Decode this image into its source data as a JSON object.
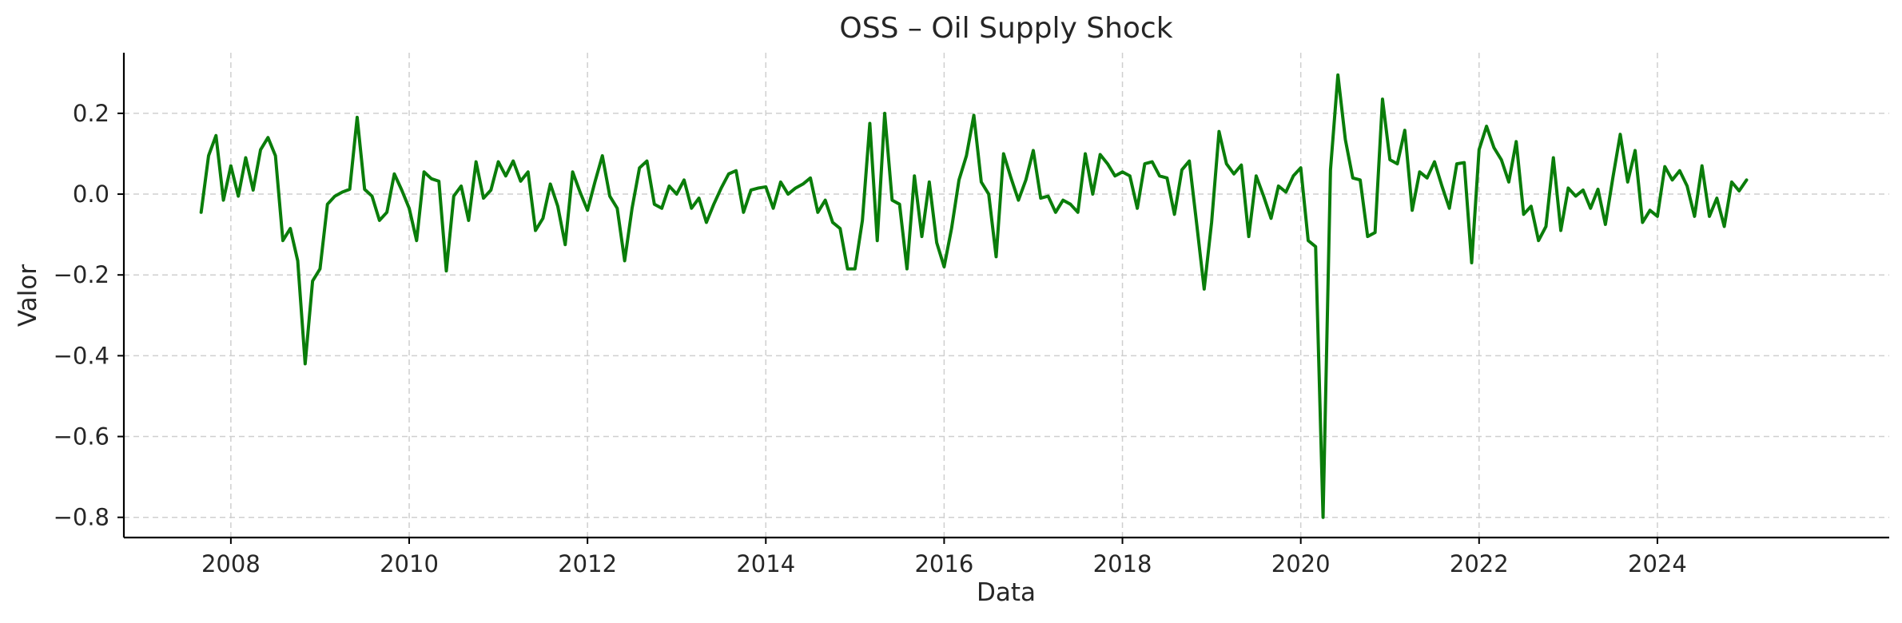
{
  "chart_data": {
    "type": "line",
    "title": "OSS – Oil Supply Shock",
    "xlabel": "Data",
    "ylabel": "Valor",
    "grid": true,
    "xlim": [
      2006.8,
      2026.6
    ],
    "ylim": [
      -0.85,
      0.35
    ],
    "x_ticks": [
      2008,
      2010,
      2012,
      2014,
      2016,
      2018,
      2020,
      2022,
      2024
    ],
    "x_tick_labels": [
      "2008",
      "2010",
      "2012",
      "2014",
      "2016",
      "2018",
      "2020",
      "2022",
      "2024"
    ],
    "y_ticks": [
      0.2,
      0.0,
      -0.2,
      -0.4,
      -0.6,
      -0.8
    ],
    "y_tick_labels": [
      "0.2",
      "0.0",
      "−0.2",
      "−0.4",
      "−0.6",
      "−0.8"
    ],
    "colors": {
      "series": "#0a7d0a"
    },
    "series": [
      {
        "x_start": "2007-09",
        "frequency": "monthly",
        "values": [
          -0.045,
          0.095,
          0.145,
          -0.015,
          0.07,
          -0.005,
          0.09,
          0.01,
          0.11,
          0.14,
          0.095,
          -0.115,
          -0.085,
          -0.165,
          -0.42,
          -0.215,
          -0.185,
          -0.025,
          -0.005,
          0.005,
          0.012,
          0.19,
          0.012,
          -0.005,
          -0.065,
          -0.045,
          0.05,
          0.01,
          -0.035,
          -0.115,
          0.055,
          0.038,
          0.032,
          -0.19,
          -0.005,
          0.02,
          -0.065,
          0.08,
          -0.01,
          0.01,
          0.08,
          0.045,
          0.082,
          0.032,
          0.055,
          -0.09,
          -0.06,
          0.025,
          -0.03,
          -0.125,
          0.055,
          0.005,
          -0.04,
          0.03,
          0.095,
          -0.005,
          -0.035,
          -0.165,
          -0.035,
          0.065,
          0.082,
          -0.025,
          -0.035,
          0.02,
          0.0,
          0.035,
          -0.035,
          -0.01,
          -0.07,
          -0.025,
          0.015,
          0.05,
          0.058,
          -0.045,
          0.01,
          0.015,
          0.018,
          -0.035,
          0.03,
          0.0,
          0.015,
          0.025,
          0.04,
          -0.045,
          -0.015,
          -0.07,
          -0.085,
          -0.185,
          -0.185,
          -0.065,
          0.175,
          -0.115,
          0.2,
          -0.015,
          -0.025,
          -0.185,
          0.045,
          -0.105,
          0.03,
          -0.12,
          -0.18,
          -0.085,
          0.035,
          0.095,
          0.195,
          0.03,
          0.0,
          -0.155,
          0.1,
          0.04,
          -0.015,
          0.035,
          0.108,
          -0.01,
          -0.005,
          -0.045,
          -0.015,
          -0.025,
          -0.045,
          0.1,
          0.0,
          0.098,
          0.075,
          0.045,
          0.055,
          0.045,
          -0.035,
          0.075,
          0.08,
          0.045,
          0.04,
          -0.05,
          0.06,
          0.082,
          -0.075,
          -0.235,
          -0.07,
          0.155,
          0.075,
          0.05,
          0.072,
          -0.105,
          0.045,
          -0.005,
          -0.06,
          0.02,
          0.005,
          0.045,
          0.065,
          -0.115,
          -0.13,
          -0.8,
          0.06,
          0.295,
          0.135,
          0.04,
          0.035,
          -0.105,
          -0.095,
          0.235,
          0.085,
          0.075,
          0.158,
          -0.04,
          0.055,
          0.04,
          0.08,
          0.02,
          -0.035,
          0.075,
          0.078,
          -0.17,
          0.11,
          0.168,
          0.115,
          0.085,
          0.03,
          0.13,
          -0.05,
          -0.03,
          -0.115,
          -0.08,
          0.09,
          -0.09,
          0.015,
          -0.005,
          0.01,
          -0.035,
          0.012,
          -0.075,
          0.04,
          0.148,
          0.03,
          0.108,
          -0.07,
          -0.04,
          -0.055,
          0.068,
          0.035,
          0.058,
          0.02,
          -0.055,
          0.07,
          -0.055,
          -0.01,
          -0.08,
          0.03,
          0.008,
          0.035
        ]
      }
    ]
  }
}
